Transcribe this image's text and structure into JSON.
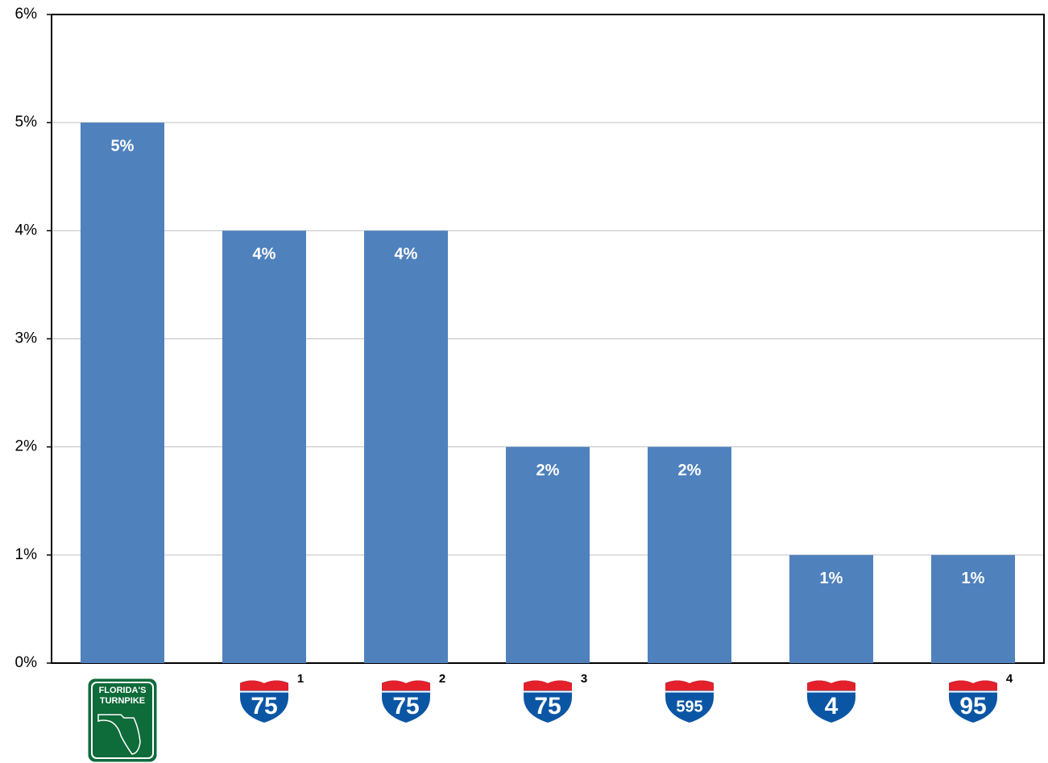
{
  "chart_data": {
    "type": "bar",
    "categories": [
      "FLORIDA'S TURNPIKE",
      "75",
      "75",
      "75",
      "595",
      "4",
      "95"
    ],
    "category_notes": [
      null,
      "1",
      "2",
      "3",
      null,
      null,
      "4"
    ],
    "values": [
      5,
      4,
      4,
      2,
      2,
      1,
      1
    ],
    "value_labels": [
      "5%",
      "4%",
      "4%",
      "2%",
      "2%",
      "1%",
      "1%"
    ],
    "color": "#4f81bd",
    "ylim": [
      0,
      6
    ],
    "yticks": [
      {
        "value": 0,
        "label": "0%"
      },
      {
        "value": 1,
        "label": "1%"
      },
      {
        "value": 2,
        "label": "2%"
      },
      {
        "value": 3,
        "label": "3%"
      },
      {
        "value": 4,
        "label": "4%"
      },
      {
        "value": 5,
        "label": "5%"
      },
      {
        "value": 6,
        "label": "6%"
      }
    ],
    "grid": true
  }
}
